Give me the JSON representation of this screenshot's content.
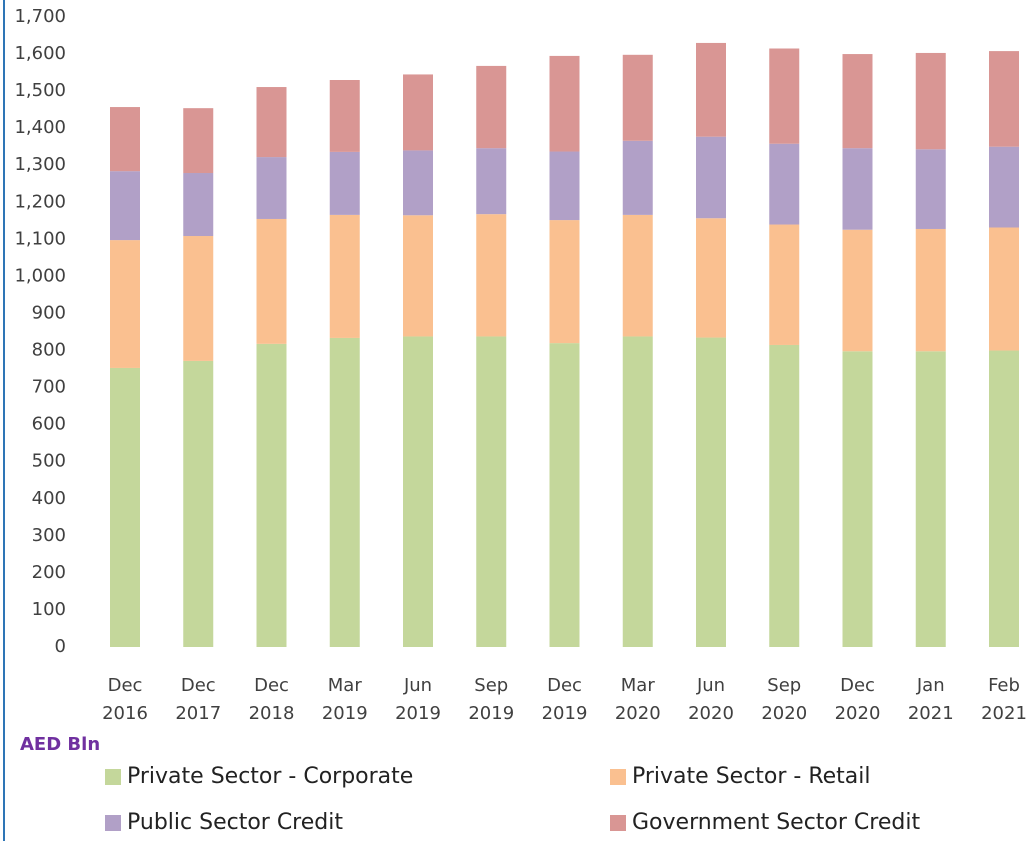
{
  "chart_data": {
    "type": "stacked-bar",
    "y_unit": "AED Bln",
    "categories": [
      "Dec 2016",
      "Dec 2017",
      "Dec 2018",
      "Mar 2019",
      "Jun 2019",
      "Sep 2019",
      "Dec 2019",
      "Mar 2020",
      "Jun 2020",
      "Sep 2020",
      "Dec 2020",
      "Jan 2021",
      "Feb 2021"
    ],
    "series": [
      {
        "name": "Private Sector - Corporate",
        "color": "#c4d79b",
        "values": [
          753,
          772,
          818,
          834,
          838,
          838,
          820,
          838,
          835,
          815,
          798,
          798,
          800
        ]
      },
      {
        "name": "Private Sector - Retail",
        "color": "#fac090",
        "values": [
          345,
          337,
          337,
          332,
          327,
          330,
          332,
          328,
          322,
          325,
          328,
          330,
          332
        ]
      },
      {
        "name": "Public Sector Credit",
        "color": "#b1a0c7",
        "values": [
          186,
          170,
          167,
          170,
          175,
          178,
          185,
          200,
          220,
          218,
          220,
          215,
          218
        ]
      },
      {
        "name": "Government Sector Credit",
        "color": "#d99694",
        "values": [
          173,
          175,
          189,
          194,
          205,
          222,
          258,
          232,
          253,
          257,
          254,
          260,
          258
        ]
      }
    ],
    "ylim": [
      0,
      1700
    ],
    "yticks": [
      0,
      100,
      200,
      300,
      400,
      500,
      600,
      700,
      800,
      900,
      {
        "value": 1000,
        "label": "1,000"
      },
      {
        "value": 1100,
        "label": "1,100"
      },
      {
        "value": 1200,
        "label": "1,200"
      },
      {
        "value": 1300,
        "label": "1,300"
      },
      {
        "value": 1400,
        "label": "1,400"
      },
      {
        "value": 1500,
        "label": "1,500"
      },
      {
        "value": 1600,
        "label": "1,600"
      },
      {
        "value": 1700,
        "label": "1,700"
      }
    ],
    "grid": false
  }
}
